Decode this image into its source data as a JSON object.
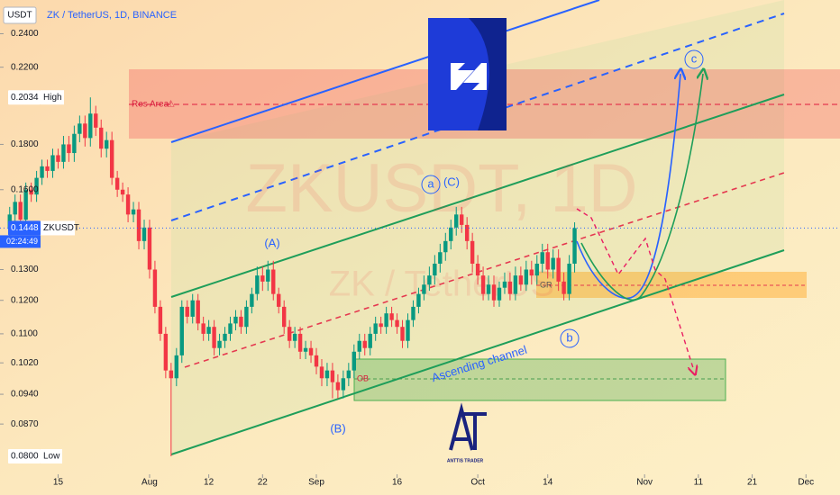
{
  "chart_data": {
    "type": "candlestick",
    "title": "ZK / TetherUS, 1D, BINANCE",
    "currency": "USDT",
    "log_scale": true,
    "grid": false,
    "up_color": "#089981",
    "down_color": "#f23645",
    "ylim": [
      0.0767,
      0.262
    ],
    "yticks": [
      {
        "value": 0.24,
        "label": "0.2400"
      },
      {
        "value": 0.22,
        "label": "0.2200"
      },
      {
        "value": 0.18,
        "label": "0.1800"
      },
      {
        "value": 0.16,
        "label": "0.1600"
      },
      {
        "value": 0.13,
        "label": "0.1300"
      },
      {
        "value": 0.12,
        "label": "0.1200"
      },
      {
        "value": 0.11,
        "label": "0.1100"
      },
      {
        "value": 0.102,
        "label": "0.1020"
      },
      {
        "value": 0.094,
        "label": "0.0940"
      },
      {
        "value": 0.087,
        "label": "0.0870"
      }
    ],
    "xlim": [
      4.2,
      155.8
    ],
    "xticks": [
      15,
      {
        "value": 32,
        "label": "Aug"
      },
      {
        "value": 43,
        "label": "12"
      },
      {
        "value": 53,
        "label": "22"
      },
      {
        "value": 63,
        "label": "Sep"
      },
      {
        "value": 78,
        "label": "16"
      },
      {
        "value": 93,
        "label": "Oct"
      },
      {
        "value": 106,
        "label": "14"
      },
      {
        "value": 124,
        "label": "Nov"
      },
      {
        "value": 134,
        "label": "11"
      },
      {
        "value": 144,
        "label": "21"
      },
      {
        "value": 154,
        "label": "Dec"
      }
    ],
    "x": [
      6,
      7,
      8,
      9,
      10,
      11,
      12,
      13,
      14,
      15,
      16,
      17,
      18,
      19,
      20,
      21,
      22,
      23,
      24,
      25,
      26,
      27,
      28,
      29,
      30,
      31,
      32,
      33,
      34,
      35,
      36,
      37,
      38,
      39,
      40,
      41,
      42,
      43,
      44,
      45,
      46,
      47,
      48,
      49,
      50,
      51,
      52,
      53,
      54,
      55,
      56,
      57,
      58,
      59,
      60,
      61,
      62,
      63,
      64,
      65,
      66,
      67,
      68,
      69,
      70,
      71,
      72,
      73,
      74,
      75,
      76,
      77,
      78,
      79,
      80,
      81,
      82,
      83,
      84,
      85,
      86,
      87,
      88,
      89,
      90,
      91,
      92,
      93,
      94,
      95,
      96,
      97,
      98,
      99,
      100,
      101,
      102,
      103,
      104,
      105,
      106,
      107,
      108,
      109,
      110,
      111
    ],
    "open": [
      0.145,
      0.15,
      0.155,
      0.148,
      0.16,
      0.158,
      0.165,
      0.17,
      0.168,
      0.175,
      0.172,
      0.18,
      0.176,
      0.185,
      0.19,
      0.183,
      0.195,
      0.188,
      0.178,
      0.182,
      0.165,
      0.16,
      0.158,
      0.15,
      0.152,
      0.14,
      0.145,
      0.13,
      0.118,
      0.11,
      0.1,
      0.098,
      0.104,
      0.118,
      0.115,
      0.12,
      0.113,
      0.11,
      0.112,
      0.106,
      0.108,
      0.11,
      0.113,
      0.115,
      0.112,
      0.118,
      0.122,
      0.128,
      0.126,
      0.13,
      0.122,
      0.118,
      0.112,
      0.108,
      0.11,
      0.105,
      0.106,
      0.104,
      0.101,
      0.098,
      0.1,
      0.097,
      0.095,
      0.098,
      0.1,
      0.105,
      0.108,
      0.106,
      0.11,
      0.113,
      0.112,
      0.116,
      0.114,
      0.112,
      0.108,
      0.114,
      0.118,
      0.122,
      0.125,
      0.128,
      0.132,
      0.136,
      0.14,
      0.145,
      0.15,
      0.146,
      0.14,
      0.132,
      0.128,
      0.122,
      0.125,
      0.12,
      0.124,
      0.126,
      0.122,
      0.128,
      0.125,
      0.13,
      0.128,
      0.132,
      0.136,
      0.13,
      0.134,
      0.126,
      0.122,
      0.132
    ],
    "high": [
      0.153,
      0.158,
      0.158,
      0.163,
      0.163,
      0.168,
      0.173,
      0.173,
      0.178,
      0.178,
      0.184,
      0.184,
      0.189,
      0.194,
      0.194,
      0.2034,
      0.199,
      0.192,
      0.186,
      0.186,
      0.168,
      0.163,
      0.161,
      0.155,
      0.155,
      0.148,
      0.148,
      0.133,
      0.12,
      0.112,
      0.102,
      0.106,
      0.12,
      0.12,
      0.122,
      0.122,
      0.115,
      0.114,
      0.114,
      0.11,
      0.112,
      0.115,
      0.117,
      0.117,
      0.12,
      0.124,
      0.131,
      0.131,
      0.133,
      0.133,
      0.124,
      0.12,
      0.114,
      0.112,
      0.112,
      0.108,
      0.108,
      0.106,
      0.103,
      0.102,
      0.102,
      0.099,
      0.1,
      0.102,
      0.107,
      0.11,
      0.11,
      0.112,
      0.115,
      0.115,
      0.118,
      0.118,
      0.116,
      0.114,
      0.116,
      0.12,
      0.124,
      0.128,
      0.131,
      0.135,
      0.139,
      0.143,
      0.148,
      0.153,
      0.153,
      0.149,
      0.143,
      0.135,
      0.131,
      0.128,
      0.128,
      0.126,
      0.129,
      0.129,
      0.131,
      0.131,
      0.133,
      0.133,
      0.135,
      0.139,
      0.139,
      0.137,
      0.137,
      0.129,
      0.135,
      0.147
    ],
    "low": [
      0.142,
      0.147,
      0.145,
      0.145,
      0.155,
      0.155,
      0.162,
      0.165,
      0.165,
      0.169,
      0.169,
      0.172,
      0.172,
      0.181,
      0.179,
      0.179,
      0.184,
      0.174,
      0.174,
      0.162,
      0.157,
      0.155,
      0.147,
      0.147,
      0.137,
      0.137,
      0.127,
      0.116,
      0.108,
      0.098,
      0.08,
      0.096,
      0.102,
      0.113,
      0.113,
      0.111,
      0.108,
      0.108,
      0.104,
      0.104,
      0.106,
      0.108,
      0.111,
      0.11,
      0.11,
      0.116,
      0.12,
      0.123,
      0.123,
      0.12,
      0.116,
      0.11,
      0.106,
      0.106,
      0.103,
      0.103,
      0.102,
      0.099,
      0.096,
      0.096,
      0.093,
      0.093,
      0.093,
      0.096,
      0.098,
      0.103,
      0.104,
      0.104,
      0.108,
      0.11,
      0.11,
      0.112,
      0.11,
      0.106,
      0.106,
      0.112,
      0.116,
      0.12,
      0.123,
      0.125,
      0.129,
      0.133,
      0.137,
      0.142,
      0.143,
      0.137,
      0.129,
      0.125,
      0.12,
      0.12,
      0.118,
      0.118,
      0.122,
      0.12,
      0.12,
      0.123,
      0.123,
      0.125,
      0.125,
      0.129,
      0.127,
      0.127,
      0.123,
      0.12,
      0.12,
      0.129
    ],
    "close": [
      0.15,
      0.155,
      0.148,
      0.16,
      0.158,
      0.165,
      0.17,
      0.168,
      0.175,
      0.172,
      0.18,
      0.176,
      0.185,
      0.19,
      0.183,
      0.195,
      0.188,
      0.178,
      0.182,
      0.165,
      0.16,
      0.158,
      0.15,
      0.152,
      0.14,
      0.145,
      0.13,
      0.118,
      0.11,
      0.1,
      0.098,
      0.104,
      0.118,
      0.115,
      0.12,
      0.113,
      0.11,
      0.112,
      0.106,
      0.108,
      0.11,
      0.113,
      0.115,
      0.112,
      0.118,
      0.122,
      0.128,
      0.126,
      0.13,
      0.122,
      0.118,
      0.112,
      0.108,
      0.11,
      0.105,
      0.106,
      0.104,
      0.101,
      0.098,
      0.1,
      0.097,
      0.095,
      0.098,
      0.1,
      0.105,
      0.108,
      0.106,
      0.11,
      0.113,
      0.112,
      0.116,
      0.114,
      0.112,
      0.108,
      0.114,
      0.118,
      0.122,
      0.125,
      0.128,
      0.132,
      0.136,
      0.14,
      0.145,
      0.15,
      0.146,
      0.14,
      0.132,
      0.128,
      0.122,
      0.125,
      0.12,
      0.124,
      0.126,
      0.122,
      0.128,
      0.125,
      0.13,
      0.128,
      0.132,
      0.136,
      0.13,
      0.134,
      0.126,
      0.122,
      0.132,
      0.1448
    ],
    "high_marker": {
      "value": 0.2034,
      "label": "0.2034",
      "text": "High"
    },
    "low_marker": {
      "value": 0.08,
      "label": "0.0800",
      "text": "Low"
    },
    "last_price": {
      "value": 0.1448,
      "label": "0.1448",
      "symbol": "ZKUSDT",
      "countdown": "02:24:49"
    },
    "annotations": {
      "res_area": "Res Area",
      "warning": "⚠",
      "wave_A": "(A)",
      "wave_B": "(B)",
      "wave_C": "(C)",
      "wave_a": "a",
      "wave_b": "b",
      "wave_c": "c",
      "gr": "GR",
      "ob": "OB",
      "channel": "Ascending channel"
    },
    "watermark": [
      "ZKUSDT, 1D",
      "ZK / TetherUS"
    ],
    "logo_text": "ANTTIS TRADER"
  }
}
